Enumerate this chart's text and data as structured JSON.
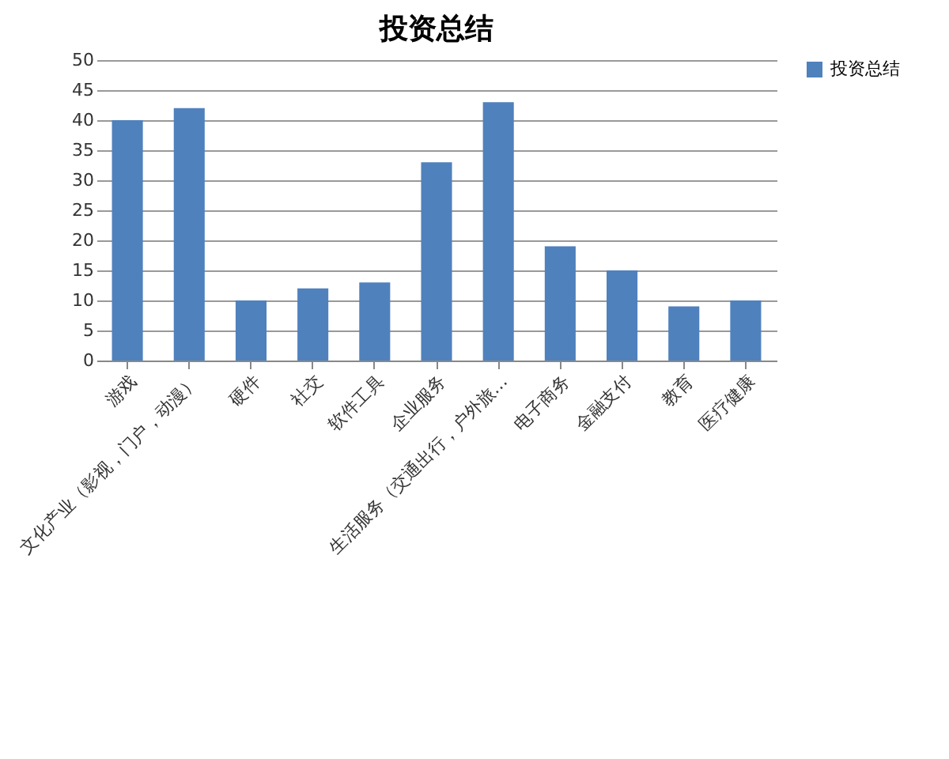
{
  "chart_data": {
    "type": "bar",
    "title": "投资总结",
    "categories": [
      "游戏",
      "文化产业（影视，门户，动漫）",
      "硬件",
      "社交",
      "软件工具",
      "企业服务",
      "生活服务（交通出行，户外旅…",
      "电子商务",
      "金融支付",
      "教育",
      "医疗健康"
    ],
    "series": [
      {
        "name": "投资总结",
        "color": "#4f81bd",
        "values": [
          40,
          42,
          10,
          12,
          13,
          33,
          43,
          19,
          15,
          9,
          10
        ]
      }
    ],
    "ylim": [
      0,
      50
    ],
    "yticks": [
      0,
      5,
      10,
      15,
      20,
      25,
      30,
      35,
      40,
      45,
      50
    ],
    "grid": "y",
    "legend": "right"
  }
}
